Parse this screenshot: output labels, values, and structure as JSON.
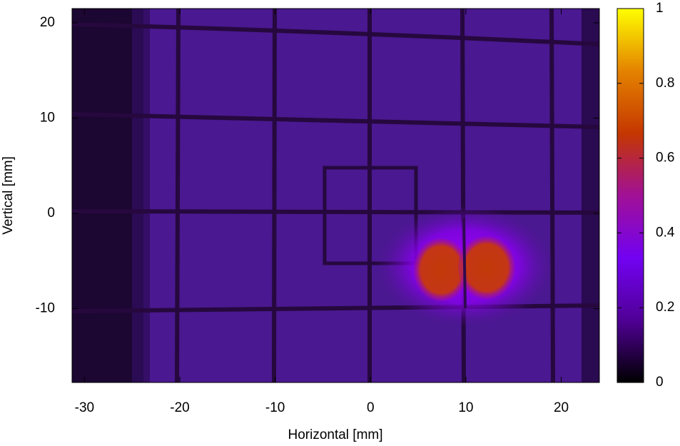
{
  "chart_data": {
    "type": "heatmap",
    "x_label": "Horizontal [mm]",
    "y_label": "Vertical [mm]",
    "xlim": [
      -31.3,
      24
    ],
    "xticks": [
      -30,
      -20,
      -10,
      0,
      10,
      20
    ],
    "ylim": [
      -17.75,
      21.5
    ],
    "yticks": [
      -10,
      0,
      10,
      20
    ],
    "colorbar": {
      "lim": [
        0,
        1
      ],
      "ticks": [
        0,
        0.2,
        0.4,
        0.6,
        0.8,
        1
      ]
    },
    "colormap": [
      "#000000",
      "#500096",
      "#7202f2",
      "#a11096",
      "#c53700",
      "#e48300",
      "#ffff00"
    ]
  }
}
